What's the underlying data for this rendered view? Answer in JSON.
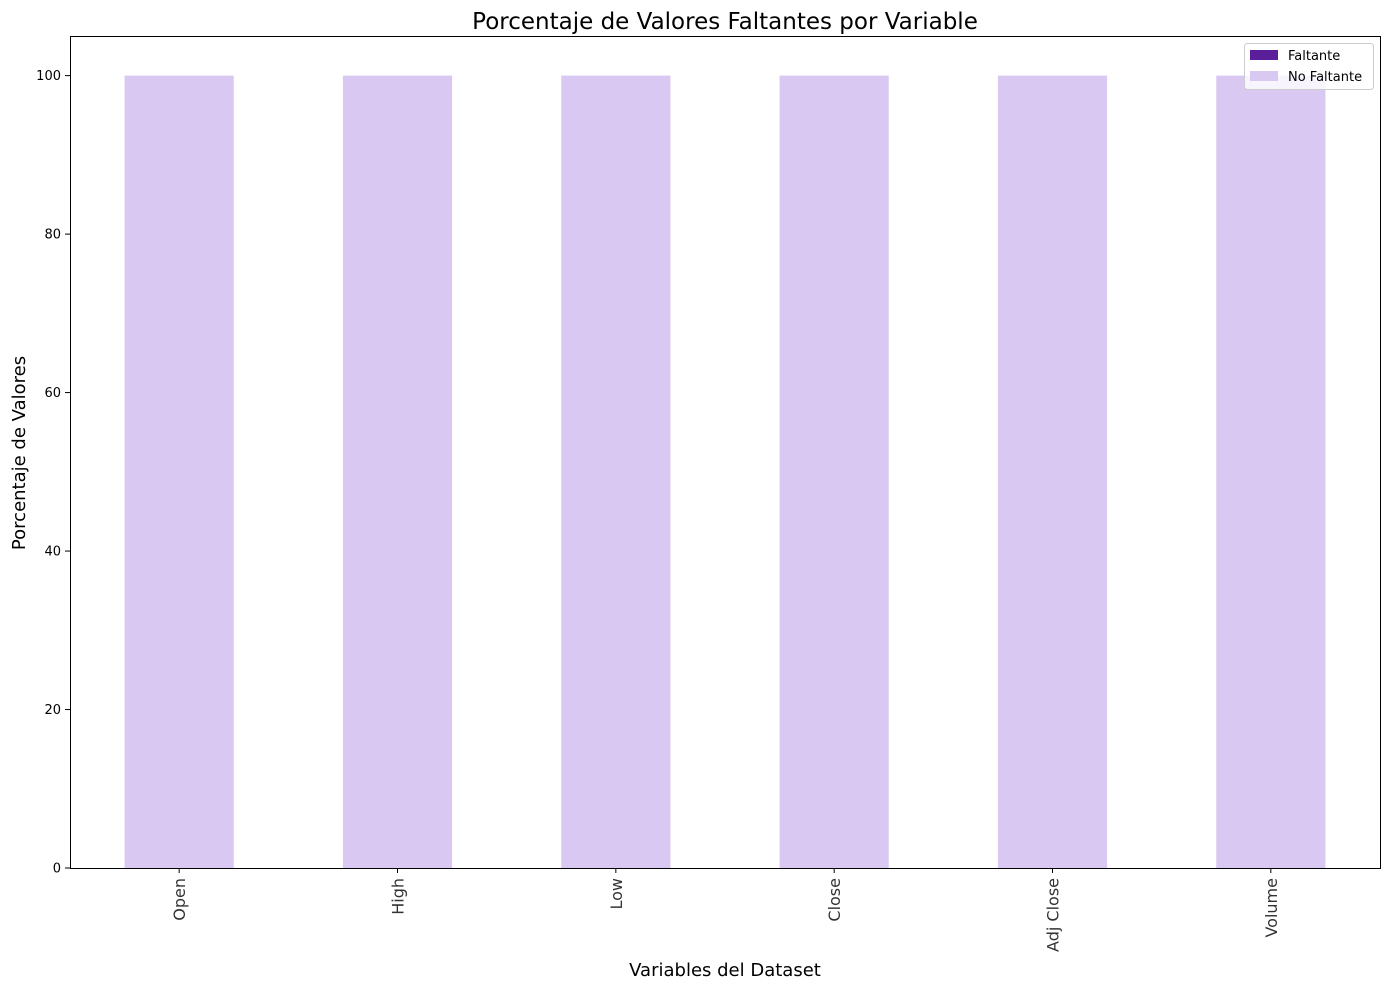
{
  "chart_data": {
    "type": "bar",
    "stacked": true,
    "title": "Porcentaje de Valores Faltantes por Variable",
    "xlabel": "Variables del Dataset",
    "ylabel": "Porcentaje de Valores",
    "categories": [
      "Open",
      "High",
      "Low",
      "Close",
      "Adj Close",
      "Volume"
    ],
    "series": [
      {
        "name": "Faltante",
        "color": "#5a1e9a",
        "values": [
          0,
          0,
          0,
          0,
          0,
          0
        ]
      },
      {
        "name": "No Faltante",
        "color": "#d8c8f2",
        "values": [
          100,
          100,
          100,
          100,
          100,
          100
        ]
      }
    ],
    "ylim": [
      0,
      105
    ],
    "yticks": [
      0,
      20,
      40,
      60,
      80,
      100
    ],
    "yticks_text": [
      "0",
      "20",
      "40",
      "60",
      "80",
      "100"
    ],
    "grid": false,
    "legend_position": "top-right"
  }
}
